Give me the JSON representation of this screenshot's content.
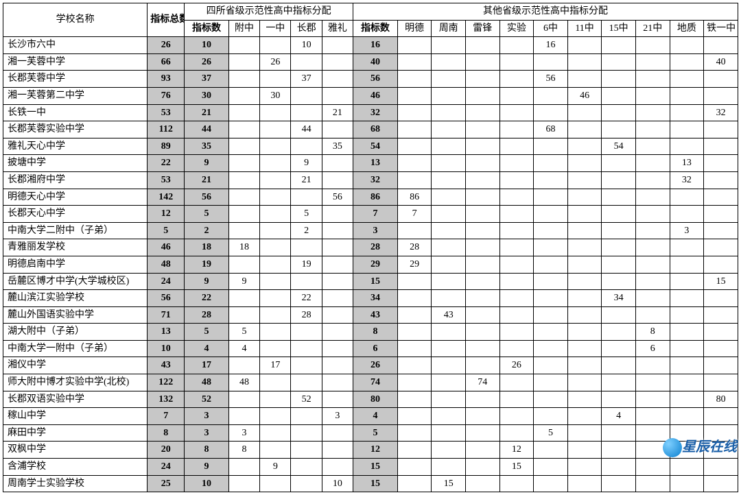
{
  "header": {
    "school_name": "学校名称",
    "quota_total": "指标总数",
    "group_four": "四所省级示范性高中指标分配",
    "group_other": "其他省级示范性高中指标分配",
    "idx_count": "指标数",
    "fz": "附中",
    "yz": "一中",
    "cj": "长郡",
    "yl": "雅礼",
    "md": "明德",
    "zn": "周南",
    "lf": "雷锋",
    "sy": "实验",
    "z6": "6中",
    "z11": "11中",
    "z15": "15中",
    "z21": "21中",
    "dz": "地质",
    "tyz": "铁一中"
  },
  "rows": [
    {
      "school": "长沙市六中",
      "total": "26",
      "idx4": "10",
      "fz": "",
      "yz": "",
      "cj": "10",
      "yl": "",
      "idxo": "16",
      "md": "",
      "zn": "",
      "lf": "",
      "sy": "",
      "z6": "16",
      "z11": "",
      "z15": "",
      "z21": "",
      "dz": "",
      "tyz": ""
    },
    {
      "school": "湘一芙蓉中学",
      "total": "66",
      "idx4": "26",
      "fz": "",
      "yz": "26",
      "cj": "",
      "yl": "",
      "idxo": "40",
      "md": "",
      "zn": "",
      "lf": "",
      "sy": "",
      "z6": "",
      "z11": "",
      "z15": "",
      "z21": "",
      "dz": "",
      "tyz": "40"
    },
    {
      "school": "长郡芙蓉中学",
      "total": "93",
      "idx4": "37",
      "fz": "",
      "yz": "",
      "cj": "37",
      "yl": "",
      "idxo": "56",
      "md": "",
      "zn": "",
      "lf": "",
      "sy": "",
      "z6": "56",
      "z11": "",
      "z15": "",
      "z21": "",
      "dz": "",
      "tyz": ""
    },
    {
      "school": "湘一芙蓉第二中学",
      "total": "76",
      "idx4": "30",
      "fz": "",
      "yz": "30",
      "cj": "",
      "yl": "",
      "idxo": "46",
      "md": "",
      "zn": "",
      "lf": "",
      "sy": "",
      "z6": "",
      "z11": "46",
      "z15": "",
      "z21": "",
      "dz": "",
      "tyz": ""
    },
    {
      "school": "长铁一中",
      "total": "53",
      "idx4": "21",
      "fz": "",
      "yz": "",
      "cj": "",
      "yl": "21",
      "idxo": "32",
      "md": "",
      "zn": "",
      "lf": "",
      "sy": "",
      "z6": "",
      "z11": "",
      "z15": "",
      "z21": "",
      "dz": "",
      "tyz": "32"
    },
    {
      "school": "长郡芙蓉实验中学",
      "total": "112",
      "idx4": "44",
      "fz": "",
      "yz": "",
      "cj": "44",
      "yl": "",
      "idxo": "68",
      "md": "",
      "zn": "",
      "lf": "",
      "sy": "",
      "z6": "68",
      "z11": "",
      "z15": "",
      "z21": "",
      "dz": "",
      "tyz": ""
    },
    {
      "school": "雅礼天心中学",
      "total": "89",
      "idx4": "35",
      "fz": "",
      "yz": "",
      "cj": "",
      "yl": "35",
      "idxo": "54",
      "md": "",
      "zn": "",
      "lf": "",
      "sy": "",
      "z6": "",
      "z11": "",
      "z15": "54",
      "z21": "",
      "dz": "",
      "tyz": ""
    },
    {
      "school": "披塘中学",
      "total": "22",
      "idx4": "9",
      "fz": "",
      "yz": "",
      "cj": "9",
      "yl": "",
      "idxo": "13",
      "md": "",
      "zn": "",
      "lf": "",
      "sy": "",
      "z6": "",
      "z11": "",
      "z15": "",
      "z21": "",
      "dz": "13",
      "tyz": ""
    },
    {
      "school": "长郡湘府中学",
      "total": "53",
      "idx4": "21",
      "fz": "",
      "yz": "",
      "cj": "21",
      "yl": "",
      "idxo": "32",
      "md": "",
      "zn": "",
      "lf": "",
      "sy": "",
      "z6": "",
      "z11": "",
      "z15": "",
      "z21": "",
      "dz": "32",
      "tyz": ""
    },
    {
      "school": "明德天心中学",
      "total": "142",
      "idx4": "56",
      "fz": "",
      "yz": "",
      "cj": "",
      "yl": "56",
      "idxo": "86",
      "md": "86",
      "zn": "",
      "lf": "",
      "sy": "",
      "z6": "",
      "z11": "",
      "z15": "",
      "z21": "",
      "dz": "",
      "tyz": ""
    },
    {
      "school": "长郡天心中学",
      "total": "12",
      "idx4": "5",
      "fz": "",
      "yz": "",
      "cj": "5",
      "yl": "",
      "idxo": "7",
      "md": "7",
      "zn": "",
      "lf": "",
      "sy": "",
      "z6": "",
      "z11": "",
      "z15": "",
      "z21": "",
      "dz": "",
      "tyz": ""
    },
    {
      "school": "中南大学二附中（子弟）",
      "total": "5",
      "idx4": "2",
      "fz": "",
      "yz": "",
      "cj": "2",
      "yl": "",
      "idxo": "3",
      "md": "",
      "zn": "",
      "lf": "",
      "sy": "",
      "z6": "",
      "z11": "",
      "z15": "",
      "z21": "",
      "dz": "3",
      "tyz": ""
    },
    {
      "school": "青雅丽发学校",
      "total": "46",
      "idx4": "18",
      "fz": "18",
      "yz": "",
      "cj": "",
      "yl": "",
      "idxo": "28",
      "md": "28",
      "zn": "",
      "lf": "",
      "sy": "",
      "z6": "",
      "z11": "",
      "z15": "",
      "z21": "",
      "dz": "",
      "tyz": ""
    },
    {
      "school": "明德启南中学",
      "total": "48",
      "idx4": "19",
      "fz": "",
      "yz": "",
      "cj": "19",
      "yl": "",
      "idxo": "29",
      "md": "29",
      "zn": "",
      "lf": "",
      "sy": "",
      "z6": "",
      "z11": "",
      "z15": "",
      "z21": "",
      "dz": "",
      "tyz": ""
    },
    {
      "school": "岳麓区博才中学(大学城校区)",
      "total": "24",
      "idx4": "9",
      "fz": "9",
      "yz": "",
      "cj": "",
      "yl": "",
      "idxo": "15",
      "md": "",
      "zn": "",
      "lf": "",
      "sy": "",
      "z6": "",
      "z11": "",
      "z15": "",
      "z21": "",
      "dz": "",
      "tyz": "15"
    },
    {
      "school": "麓山滨江实验学校",
      "total": "56",
      "idx4": "22",
      "fz": "",
      "yz": "",
      "cj": "22",
      "yl": "",
      "idxo": "34",
      "md": "",
      "zn": "",
      "lf": "",
      "sy": "",
      "z6": "",
      "z11": "",
      "z15": "34",
      "z21": "",
      "dz": "",
      "tyz": ""
    },
    {
      "school": "麓山外国语实验中学",
      "total": "71",
      "idx4": "28",
      "fz": "",
      "yz": "",
      "cj": "28",
      "yl": "",
      "idxo": "43",
      "md": "",
      "zn": "43",
      "lf": "",
      "sy": "",
      "z6": "",
      "z11": "",
      "z15": "",
      "z21": "",
      "dz": "",
      "tyz": ""
    },
    {
      "school": "湖大附中（子弟）",
      "total": "13",
      "idx4": "5",
      "fz": "5",
      "yz": "",
      "cj": "",
      "yl": "",
      "idxo": "8",
      "md": "",
      "zn": "",
      "lf": "",
      "sy": "",
      "z6": "",
      "z11": "",
      "z15": "",
      "z21": "8",
      "dz": "",
      "tyz": ""
    },
    {
      "school": "中南大学一附中（子弟）",
      "total": "10",
      "idx4": "4",
      "fz": "4",
      "yz": "",
      "cj": "",
      "yl": "",
      "idxo": "6",
      "md": "",
      "zn": "",
      "lf": "",
      "sy": "",
      "z6": "",
      "z11": "",
      "z15": "",
      "z21": "6",
      "dz": "",
      "tyz": ""
    },
    {
      "school": "湘仪中学",
      "total": "43",
      "idx4": "17",
      "fz": "",
      "yz": "17",
      "cj": "",
      "yl": "",
      "idxo": "26",
      "md": "",
      "zn": "",
      "lf": "",
      "sy": "26",
      "z6": "",
      "z11": "",
      "z15": "",
      "z21": "",
      "dz": "",
      "tyz": ""
    },
    {
      "school": "师大附中博才实验中学(北校)",
      "total": "122",
      "idx4": "48",
      "fz": "48",
      "yz": "",
      "cj": "",
      "yl": "",
      "idxo": "74",
      "md": "",
      "zn": "",
      "lf": "74",
      "sy": "",
      "z6": "",
      "z11": "",
      "z15": "",
      "z21": "",
      "dz": "",
      "tyz": ""
    },
    {
      "school": "长郡双语实验中学",
      "total": "132",
      "idx4": "52",
      "fz": "",
      "yz": "",
      "cj": "52",
      "yl": "",
      "idxo": "80",
      "md": "",
      "zn": "",
      "lf": "",
      "sy": "",
      "z6": "",
      "z11": "",
      "z15": "",
      "z21": "",
      "dz": "",
      "tyz": "80"
    },
    {
      "school": "稼山中学",
      "total": "7",
      "idx4": "3",
      "fz": "",
      "yz": "",
      "cj": "",
      "yl": "3",
      "idxo": "4",
      "md": "",
      "zn": "",
      "lf": "",
      "sy": "",
      "z6": "",
      "z11": "",
      "z15": "4",
      "z21": "",
      "dz": "",
      "tyz": ""
    },
    {
      "school": "麻田中学",
      "total": "8",
      "idx4": "3",
      "fz": "3",
      "yz": "",
      "cj": "",
      "yl": "",
      "idxo": "5",
      "md": "",
      "zn": "",
      "lf": "",
      "sy": "",
      "z6": "5",
      "z11": "",
      "z15": "",
      "z21": "",
      "dz": "",
      "tyz": ""
    },
    {
      "school": "双枫中学",
      "total": "20",
      "idx4": "8",
      "fz": "8",
      "yz": "",
      "cj": "",
      "yl": "",
      "idxo": "12",
      "md": "",
      "zn": "",
      "lf": "",
      "sy": "12",
      "z6": "",
      "z11": "",
      "z15": "",
      "z21": "",
      "dz": "",
      "tyz": ""
    },
    {
      "school": "含浦学校",
      "total": "24",
      "idx4": "9",
      "fz": "",
      "yz": "9",
      "cj": "",
      "yl": "",
      "idxo": "15",
      "md": "",
      "zn": "",
      "lf": "",
      "sy": "15",
      "z6": "",
      "z11": "",
      "z15": "",
      "z21": "",
      "dz": "",
      "tyz": ""
    },
    {
      "school": "周南学士实验学校",
      "total": "25",
      "idx4": "10",
      "fz": "",
      "yz": "",
      "cj": "",
      "yl": "10",
      "idxo": "15",
      "md": "",
      "zn": "15",
      "lf": "",
      "sy": "",
      "z6": "",
      "z11": "",
      "z15": "",
      "z21": "",
      "dz": "",
      "tyz": ""
    }
  ],
  "watermark": "星辰在线"
}
